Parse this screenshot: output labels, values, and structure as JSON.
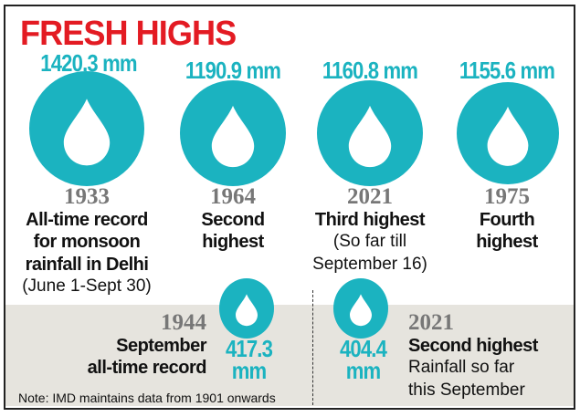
{
  "title": "FRESH HIGHS",
  "records": [
    {
      "value": "1420.3 mm",
      "year": "1933",
      "lines_bold": [
        "All-time record",
        "for monsoon",
        "rainfall in Delhi"
      ],
      "lines_normal": [
        "(June 1-Sept 30)"
      ]
    },
    {
      "value": "1190.9 mm",
      "year": "1964",
      "lines_bold": [
        "Second",
        "highest"
      ],
      "lines_normal": []
    },
    {
      "value": "1160.8 mm",
      "year": "2021",
      "lines_bold": [
        "Third highest"
      ],
      "lines_normal": [
        "(So far till",
        "September 16)"
      ]
    },
    {
      "value": "1155.6 mm",
      "year": "1975",
      "lines_bold": [
        "Fourth",
        "highest"
      ],
      "lines_normal": []
    }
  ],
  "september": [
    {
      "year": "1944",
      "lines_bold": [
        "September",
        "all-time record"
      ],
      "value": "417.3",
      "unit": "mm"
    },
    {
      "year": "2021",
      "lines_bold": [
        "Second highest"
      ],
      "lines_normal": [
        "Rainfall so far",
        "this September"
      ],
      "value": "404.4",
      "unit": "mm"
    }
  ],
  "note": "Note: IMD maintains data from 1901 onwards",
  "colors": {
    "accent": "#1bb3c0",
    "title": "#e31b23"
  }
}
